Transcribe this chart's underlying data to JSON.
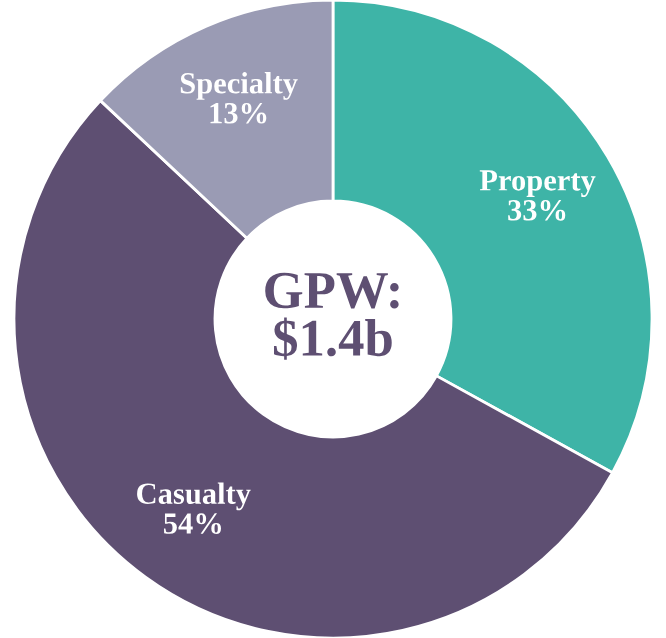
{
  "chart_data": {
    "type": "donut",
    "title": "GPW:\n$1.4b",
    "categories": [
      "Property",
      "Casualty",
      "Specialty"
    ],
    "values": [
      33,
      54,
      13
    ],
    "value_labels": [
      "33%",
      "54%",
      "13%"
    ],
    "colors": [
      "#3eb4a7",
      "#5e4f72",
      "#9a9bb4"
    ],
    "legend": false
  }
}
